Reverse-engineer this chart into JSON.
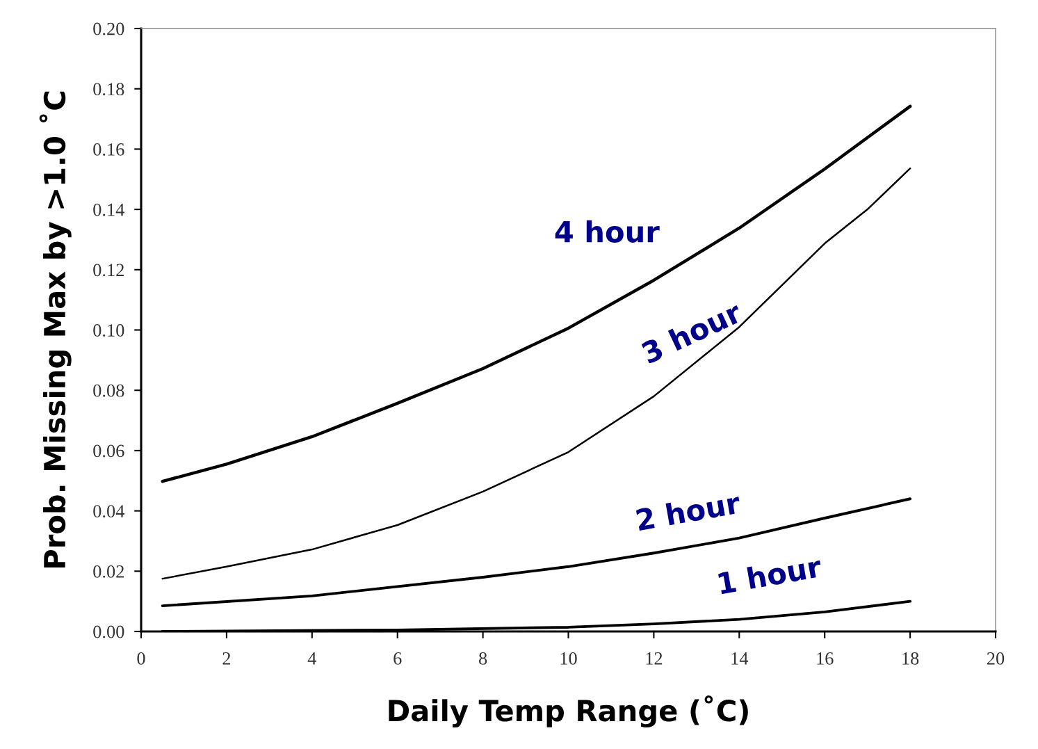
{
  "chart_data": {
    "type": "line",
    "xlabel": "Daily Temp Range (˚C)",
    "ylabel": "Prob. Missing Max by >1.0 ˚C",
    "xlim": [
      0,
      20
    ],
    "xticks": [
      0,
      2,
      4,
      6,
      8,
      10,
      12,
      14,
      16,
      18,
      20
    ],
    "ylim": [
      0,
      0.2
    ],
    "yticks": [
      {
        "value": 0,
        "label": "0.00"
      },
      {
        "value": 0.02,
        "label": "0.02"
      },
      {
        "value": 0.04,
        "label": "0.04"
      },
      {
        "value": 0.06,
        "label": "0.06"
      },
      {
        "value": 0.08,
        "label": "0.08"
      },
      {
        "value": 0.1,
        "label": "0.10"
      },
      {
        "value": 0.12,
        "label": "0.12"
      },
      {
        "value": 0.14,
        "label": "0.14"
      },
      {
        "value": 0.16,
        "label": "0.16"
      },
      {
        "value": 0.18,
        "label": "0.18"
      },
      {
        "value": 0.2,
        "label": "0.20"
      }
    ],
    "grid": false,
    "marker": "none",
    "line_style": "solid",
    "series": [
      {
        "name": "4 hour",
        "color": "#000000",
        "x": [
          0.5,
          2,
          4,
          6,
          8,
          10,
          12,
          14,
          16,
          18
        ],
        "values": [
          0.0498,
          0.0555,
          0.0646,
          0.0757,
          0.0872,
          0.1006,
          0.1165,
          0.1338,
          0.1534,
          0.1742
        ]
      },
      {
        "name": "3 hour",
        "color": "#000000",
        "x": [
          0.5,
          2,
          4,
          6,
          8,
          10,
          12,
          14,
          16,
          17,
          18
        ],
        "values": [
          0.0175,
          0.0215,
          0.0272,
          0.0353,
          0.0464,
          0.0595,
          0.078,
          0.101,
          0.1287,
          0.14,
          0.1536
        ]
      },
      {
        "name": "2 hour",
        "color": "#000000",
        "x": [
          0.5,
          4,
          8,
          10,
          12,
          14,
          16,
          18
        ],
        "values": [
          0.0085,
          0.0118,
          0.018,
          0.0215,
          0.026,
          0.031,
          0.0376,
          0.044
        ]
      },
      {
        "name": "1 hour",
        "color": "#000000",
        "x": [
          0.5,
          6,
          10,
          12,
          14,
          16,
          18
        ],
        "values": [
          0,
          0.0005,
          0.0014,
          0.0025,
          0.004,
          0.0065,
          0.01
        ]
      }
    ]
  }
}
